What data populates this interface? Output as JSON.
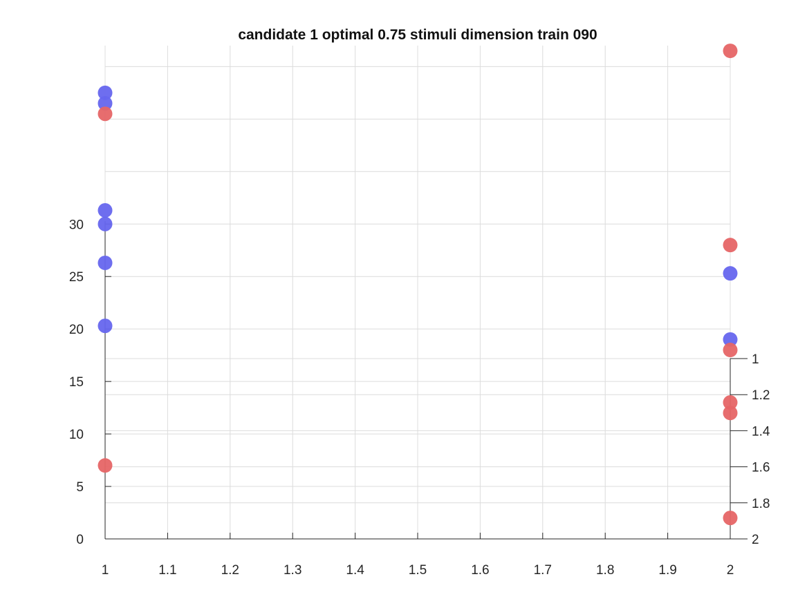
{
  "chart_data": {
    "type": "scatter",
    "title": "candidate 1 optimal 0.75 stimuli dimension train 090",
    "xlabel": "",
    "ylabel": "",
    "xlim": [
      1,
      2
    ],
    "xticks": [
      "1",
      "1.1",
      "1.2",
      "1.3",
      "1.4",
      "1.5",
      "1.6",
      "1.7",
      "1.8",
      "1.9",
      "2"
    ],
    "left_y": {
      "ylim": [
        0,
        47
      ],
      "ticks": [
        "0",
        "5",
        "10",
        "15",
        "20",
        "25",
        "30"
      ]
    },
    "right_y": {
      "ylim": [
        2,
        1
      ],
      "ticks": [
        "1",
        "1.2",
        "1.4",
        "1.6",
        "1.8",
        "2"
      ],
      "direction": "reversed"
    },
    "grid": true,
    "series": [
      {
        "color": "#6666ee",
        "points": [
          {
            "x": 1,
            "y": 42.5
          },
          {
            "x": 1,
            "y": 41.5
          },
          {
            "x": 1,
            "y": 31.3
          },
          {
            "x": 1,
            "y": 30.0
          },
          {
            "x": 1,
            "y": 26.3
          },
          {
            "x": 1,
            "y": 20.3
          },
          {
            "x": 2,
            "y": 25.3
          },
          {
            "x": 2,
            "y": 19.0
          }
        ]
      },
      {
        "color": "#e66566",
        "points": [
          {
            "x": 1,
            "y": 40.5
          },
          {
            "x": 1,
            "y": 7.0
          },
          {
            "x": 2,
            "y": 46.5
          },
          {
            "x": 2,
            "y": 28.0
          },
          {
            "x": 2,
            "y": 18.0
          },
          {
            "x": 2,
            "y": 13.0
          },
          {
            "x": 2,
            "y": 12.0
          },
          {
            "x": 2,
            "y": 2.0
          }
        ]
      }
    ]
  }
}
